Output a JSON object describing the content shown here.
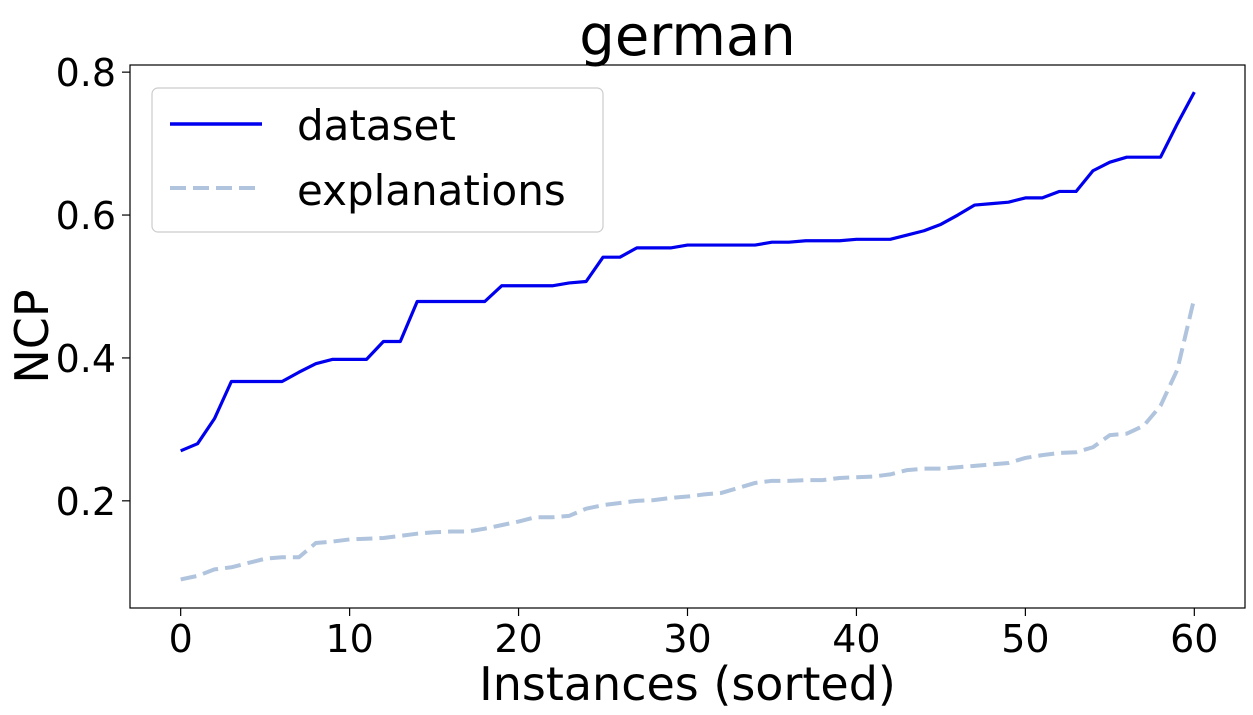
{
  "chart_data": {
    "type": "line",
    "title": "german",
    "xlabel": "Instances (sorted)",
    "ylabel": "NCP",
    "xlim": [
      -3,
      63
    ],
    "ylim": [
      0.05,
      0.81
    ],
    "xticks": [
      0,
      10,
      20,
      30,
      40,
      50,
      60
    ],
    "yticks": [
      0.2,
      0.4,
      0.6,
      0.8
    ],
    "xtick_labels": [
      "0",
      "10",
      "20",
      "30",
      "40",
      "50",
      "60"
    ],
    "ytick_labels": [
      "0.2",
      "0.4",
      "0.6",
      "0.8"
    ],
    "grid": false,
    "legend_position": "upper-left",
    "x": [
      0,
      1,
      2,
      3,
      4,
      5,
      6,
      7,
      8,
      9,
      10,
      11,
      12,
      13,
      14,
      15,
      16,
      17,
      18,
      19,
      20,
      21,
      22,
      23,
      24,
      25,
      26,
      27,
      28,
      29,
      30,
      31,
      32,
      33,
      34,
      35,
      36,
      37,
      38,
      39,
      40,
      41,
      42,
      43,
      44,
      45,
      46,
      47,
      48,
      49,
      50,
      51,
      52,
      53,
      54,
      55,
      56,
      57,
      58,
      59,
      60
    ],
    "series": [
      {
        "name": "dataset",
        "color": "#0000ee",
        "style": "solid",
        "values": [
          0.27,
          0.28,
          0.315,
          0.367,
          0.367,
          0.367,
          0.367,
          0.38,
          0.392,
          0.398,
          0.398,
          0.398,
          0.423,
          0.423,
          0.479,
          0.479,
          0.479,
          0.479,
          0.479,
          0.501,
          0.501,
          0.501,
          0.501,
          0.505,
          0.507,
          0.541,
          0.541,
          0.554,
          0.554,
          0.554,
          0.558,
          0.558,
          0.558,
          0.558,
          0.558,
          0.562,
          0.562,
          0.564,
          0.564,
          0.564,
          0.566,
          0.566,
          0.566,
          0.572,
          0.578,
          0.587,
          0.6,
          0.614,
          0.616,
          0.618,
          0.624,
          0.624,
          0.633,
          0.633,
          0.662,
          0.674,
          0.681,
          0.681,
          0.681,
          0.728,
          0.772
        ]
      },
      {
        "name": "explanations",
        "color": "#b0c4de",
        "style": "dashed",
        "values": [
          0.09,
          0.095,
          0.104,
          0.107,
          0.113,
          0.119,
          0.121,
          0.121,
          0.141,
          0.143,
          0.146,
          0.147,
          0.148,
          0.151,
          0.154,
          0.156,
          0.157,
          0.157,
          0.161,
          0.166,
          0.171,
          0.177,
          0.177,
          0.179,
          0.189,
          0.194,
          0.197,
          0.2,
          0.201,
          0.204,
          0.206,
          0.209,
          0.211,
          0.218,
          0.225,
          0.228,
          0.228,
          0.229,
          0.229,
          0.232,
          0.233,
          0.234,
          0.237,
          0.243,
          0.245,
          0.245,
          0.247,
          0.249,
          0.251,
          0.253,
          0.26,
          0.264,
          0.267,
          0.268,
          0.275,
          0.292,
          0.294,
          0.305,
          0.333,
          0.384,
          0.484
        ]
      }
    ]
  }
}
